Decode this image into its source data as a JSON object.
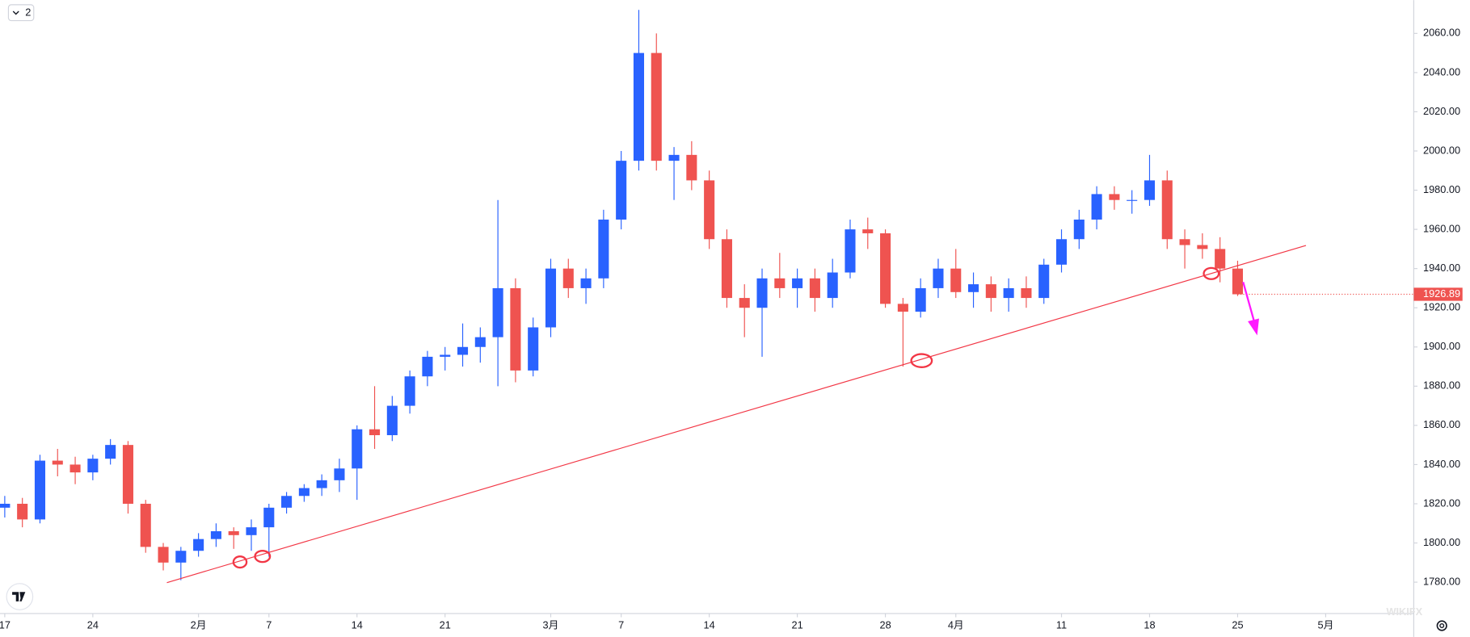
{
  "chart_data": {
    "type": "candlestick",
    "x": [
      0,
      1,
      2,
      3,
      4,
      5,
      6,
      7,
      8,
      9,
      10,
      11,
      12,
      13,
      14,
      15,
      16,
      17,
      18,
      19,
      20,
      21,
      22,
      23,
      24,
      25,
      26,
      27,
      28,
      29,
      30,
      31,
      32,
      33,
      34,
      35,
      36,
      37,
      38,
      39,
      40,
      41,
      42,
      43,
      44,
      45,
      46,
      47,
      48,
      49,
      50,
      51,
      52,
      53,
      54,
      55,
      56,
      57,
      58,
      59,
      60,
      61,
      62,
      63,
      64,
      65,
      66,
      67,
      68,
      69,
      70
    ],
    "open": [
      1818,
      1820,
      1812,
      1842,
      1840,
      1836,
      1843,
      1850,
      1820,
      1798,
      1790,
      1796,
      1802,
      1806,
      1804,
      1808,
      1818,
      1824,
      1828,
      1832,
      1838,
      1858,
      1855,
      1870,
      1885,
      1895,
      1896,
      1900,
      1905,
      1930,
      1888,
      1910,
      1940,
      1930,
      1935,
      1965,
      1995,
      2050,
      1995,
      1998,
      1985,
      1955,
      1925,
      1920,
      1935,
      1930,
      1935,
      1925,
      1938,
      1960,
      1958,
      1922,
      1918,
      1930,
      1940,
      1928,
      1932,
      1925,
      1930,
      1925,
      1942,
      1955,
      1965,
      1978,
      1975,
      1975,
      1985,
      1955,
      1952,
      1950,
      1940
    ],
    "high": [
      1824,
      1823,
      1845,
      1848,
      1844,
      1845,
      1853,
      1852,
      1822,
      1800,
      1798,
      1805,
      1810,
      1808,
      1812,
      1820,
      1826,
      1830,
      1835,
      1843,
      1860,
      1880,
      1875,
      1888,
      1898,
      1900,
      1912,
      1910,
      1975,
      1935,
      1915,
      1945,
      1945,
      1940,
      1970,
      2000,
      2072,
      2060,
      2002,
      2005,
      1990,
      1960,
      1932,
      1940,
      1948,
      1940,
      1940,
      1945,
      1965,
      1966,
      1960,
      1925,
      1935,
      1945,
      1950,
      1938,
      1936,
      1935,
      1936,
      1945,
      1960,
      1970,
      1982,
      1982,
      1980,
      1998,
      1990,
      1960,
      1958,
      1956,
      1944
    ],
    "low": [
      1813,
      1808,
      1810,
      1834,
      1830,
      1832,
      1840,
      1815,
      1795,
      1786,
      1781,
      1793,
      1798,
      1797,
      1796,
      1793,
      1815,
      1821,
      1824,
      1826,
      1822,
      1848,
      1852,
      1866,
      1880,
      1888,
      1890,
      1892,
      1880,
      1882,
      1885,
      1905,
      1925,
      1922,
      1930,
      1960,
      1990,
      1990,
      1975,
      1980,
      1950,
      1920,
      1905,
      1895,
      1925,
      1920,
      1918,
      1920,
      1935,
      1950,
      1920,
      1890,
      1915,
      1925,
      1925,
      1920,
      1918,
      1918,
      1920,
      1922,
      1938,
      1950,
      1960,
      1970,
      1968,
      1972,
      1950,
      1940,
      1945,
      1933,
      1926
    ],
    "close": [
      1820,
      1812,
      1842,
      1840,
      1836,
      1843,
      1850,
      1820,
      1798,
      1790,
      1796,
      1802,
      1806,
      1804,
      1808,
      1818,
      1824,
      1828,
      1832,
      1838,
      1858,
      1855,
      1870,
      1885,
      1895,
      1896,
      1900,
      1905,
      1930,
      1888,
      1910,
      1940,
      1930,
      1935,
      1965,
      1995,
      2050,
      1995,
      1998,
      1985,
      1955,
      1925,
      1920,
      1935,
      1930,
      1935,
      1925,
      1938,
      1960,
      1958,
      1922,
      1918,
      1930,
      1940,
      1928,
      1932,
      1925,
      1930,
      1925,
      1942,
      1955,
      1965,
      1978,
      1975,
      1975,
      1985,
      1955,
      1952,
      1950,
      1940,
      1926.89
    ],
    "up_color": "#2962ff",
    "down_color": "#ef5350",
    "xlim": [
      -0.27,
      80
    ],
    "ylim": [
      1764,
      2077
    ],
    "xticks": [
      {
        "value": 0,
        "label": "17"
      },
      {
        "value": 5,
        "label": "24"
      },
      {
        "value": 11,
        "label": "2月"
      },
      {
        "value": 15,
        "label": "7"
      },
      {
        "value": 20,
        "label": "14"
      },
      {
        "value": 25,
        "label": "21"
      },
      {
        "value": 31,
        "label": "3月"
      },
      {
        "value": 35,
        "label": "7"
      },
      {
        "value": 40,
        "label": "14"
      },
      {
        "value": 45,
        "label": "21"
      },
      {
        "value": 50,
        "label": "28"
      },
      {
        "value": 54,
        "label": "4月"
      },
      {
        "value": 60,
        "label": "11"
      },
      {
        "value": 65,
        "label": "18"
      },
      {
        "value": 70,
        "label": "25"
      },
      {
        "value": 75,
        "label": "5月"
      }
    ],
    "yticks": [
      {
        "value": 1780,
        "label": "1780.00"
      },
      {
        "value": 1800,
        "label": "1800.00"
      },
      {
        "value": 1820,
        "label": "1820.00"
      },
      {
        "value": 1840,
        "label": "1840.00"
      },
      {
        "value": 1860,
        "label": "1860.00"
      },
      {
        "value": 1880,
        "label": "1880.00"
      },
      {
        "value": 1900,
        "label": "1900.00"
      },
      {
        "value": 1920,
        "label": "1920.00"
      },
      {
        "value": 1940,
        "label": "1940.00"
      },
      {
        "value": 1960,
        "label": "1960.00"
      },
      {
        "value": 1980,
        "label": "1980.00"
      },
      {
        "value": 2000,
        "label": "2000.00"
      },
      {
        "value": 2020,
        "label": "2020.00"
      },
      {
        "value": 2040,
        "label": "2040.00"
      },
      {
        "value": 2060,
        "label": "2060.00"
      }
    ],
    "last_price": 1926.89,
    "last_price_color": "#ef5350"
  },
  "toolbar": {
    "interval_badge": "2"
  },
  "watermark": "WIKIFX"
}
